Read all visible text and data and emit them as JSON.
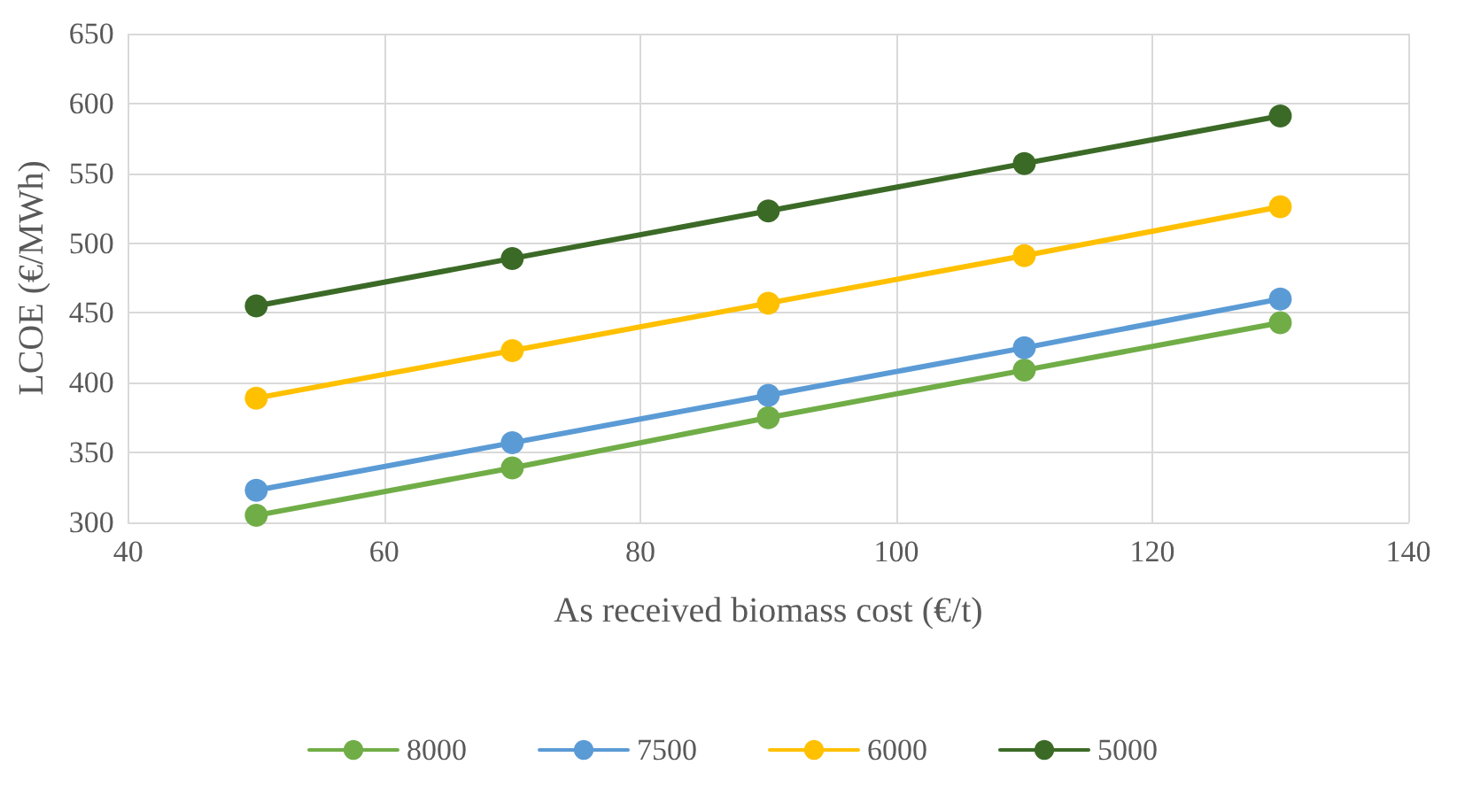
{
  "chart_data": {
    "type": "line",
    "xlabel": "As received biomass cost (€/t)",
    "ylabel": "LCOE (€/MWh)",
    "x": [
      50,
      70,
      90,
      110,
      130
    ],
    "series": [
      {
        "name": "8000",
        "color": "#70ad47",
        "values": [
          305,
          339,
          375,
          409,
          443
        ]
      },
      {
        "name": "7500",
        "color": "#5b9bd5",
        "values": [
          323,
          357,
          391,
          425,
          460
        ]
      },
      {
        "name": "6000",
        "color": "#ffc000",
        "values": [
          389,
          423,
          457,
          491,
          526
        ]
      },
      {
        "name": "5000",
        "color": "#3b6a27",
        "values": [
          455,
          489,
          523,
          557,
          591
        ]
      }
    ],
    "xlim": [
      40,
      140
    ],
    "xticks": [
      40,
      60,
      80,
      100,
      120,
      140
    ],
    "ylim": [
      300,
      650
    ],
    "yticks": [
      300,
      350,
      400,
      450,
      500,
      550,
      600,
      650
    ],
    "grid": true,
    "legend": "bottom",
    "marker": "circle",
    "line_style": "solid"
  }
}
